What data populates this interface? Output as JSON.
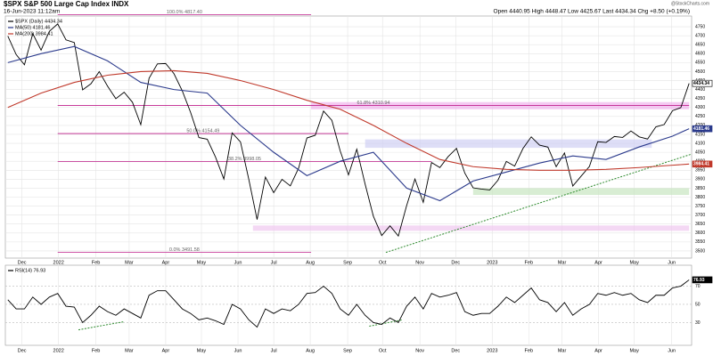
{
  "header": {
    "title": "$SPX S&P 500 Large Cap Index INDX",
    "timestamp": "16-Jun-2023 11:12am",
    "quote": "Open 4440.95 High 4448.47 Low 4425.67 Last 4434.34 Chg +8.50 (+0.19%)",
    "credit": "@StockCharts.com"
  },
  "chart_data": [
    {
      "type": "line",
      "xlim": [
        -0.3,
        82.3
      ],
      "xticks": [
        {
          "value": 1.7,
          "label": "Dec"
        },
        {
          "value": 6.1,
          "label": "2022"
        },
        {
          "value": 10.6,
          "label": "Feb"
        },
        {
          "value": 14.6,
          "label": "Mar"
        },
        {
          "value": 19,
          "label": "Apr"
        },
        {
          "value": 23.3,
          "label": "May"
        },
        {
          "value": 27.7,
          "label": "Jun"
        },
        {
          "value": 32,
          "label": "Jul"
        },
        {
          "value": 36.4,
          "label": "Aug"
        },
        {
          "value": 40.9,
          "label": "Sep"
        },
        {
          "value": 45.1,
          "label": "Oct"
        },
        {
          "value": 49.6,
          "label": "Nov"
        },
        {
          "value": 53.9,
          "label": "Dec"
        },
        {
          "value": 58.3,
          "label": "2023"
        },
        {
          "value": 62.7,
          "label": "Feb"
        },
        {
          "value": 66.7,
          "label": "Mar"
        },
        {
          "value": 71.1,
          "label": "Apr"
        },
        {
          "value": 75.4,
          "label": "May"
        },
        {
          "value": 79.9,
          "label": "Jun"
        }
      ],
      "ylim": [
        3460,
        4810
      ],
      "yticks": [
        3500,
        3550,
        3600,
        3650,
        3700,
        3750,
        3800,
        3850,
        3900,
        3950,
        4000,
        4050,
        4100,
        4150,
        4200,
        4250,
        4300,
        4350,
        4400,
        4450,
        4500,
        4550,
        4600,
        4650,
        4700,
        4750
      ],
      "grid": true,
      "series": [
        {
          "name": "$SPX (Daily) 4434.34",
          "color": "#000000",
          "values": [
            4698,
            4595,
            4538,
            4712,
            4620,
            4725,
            4766,
            4677,
            4662,
            4398,
            4432,
            4500,
            4419,
            4349,
            4385,
            4329,
            4204,
            4463,
            4543,
            4545,
            4488,
            4392,
            4272,
            4132,
            4123,
            4023,
            3901,
            4158,
            4108,
            3900,
            3675,
            3912,
            3825,
            3899,
            3863,
            3962,
            4130,
            4145,
            4280,
            4228,
            4058,
            3924,
            4067,
            3873,
            3693,
            3586,
            3640,
            3583,
            3753,
            3901,
            3771,
            3993,
            3965,
            4026,
            4072,
            3934,
            3852,
            3845,
            3840,
            3895,
            3999,
            3973,
            4071,
            4136,
            4090,
            4079,
            3970,
            4046,
            3862,
            3917,
            3971,
            4109,
            4105,
            4138,
            4133,
            4169,
            4136,
            4124,
            4192,
            4205,
            4282,
            4299,
            4434.34
          ]
        },
        {
          "name": "MA(50) 4181.46",
          "color": "#2b3a8c",
          "x": [
            0,
            4,
            8,
            12,
            16,
            20,
            24,
            28,
            32,
            36,
            40,
            44,
            48,
            52,
            56,
            60,
            64,
            68,
            72,
            76,
            80,
            82
          ],
          "values": [
            4550,
            4600,
            4640,
            4560,
            4440,
            4400,
            4380,
            4200,
            4050,
            3920,
            4000,
            4050,
            3850,
            3780,
            3890,
            3940,
            3990,
            4030,
            4010,
            4080,
            4140,
            4181.46
          ]
        },
        {
          "name": "MA(200) 3984.41",
          "color": "#c0392b",
          "x": [
            0,
            4,
            8,
            12,
            16,
            20,
            24,
            28,
            32,
            36,
            40,
            44,
            48,
            52,
            56,
            60,
            64,
            68,
            72,
            76,
            80,
            82
          ],
          "values": [
            4300,
            4380,
            4440,
            4480,
            4500,
            4505,
            4490,
            4450,
            4400,
            4340,
            4290,
            4200,
            4100,
            4010,
            3970,
            3955,
            3950,
            3950,
            3955,
            3965,
            3978,
            3984.41
          ]
        }
      ],
      "fib_levels": [
        {
          "label": "100.0% 4817.40",
          "value": 4817.4,
          "x": [
            6,
            36.5
          ]
        },
        {
          "label": "61.8% 4310.94",
          "value": 4310.94,
          "x": [
            6,
            82
          ]
        },
        {
          "label": "50.0% 4154.49",
          "value": 4154.49,
          "x": [
            6,
            41
          ]
        },
        {
          "label": "38.2% 3998.05",
          "value": 3998.05,
          "x": [
            6,
            51
          ]
        },
        {
          "label": "0.0% 3491.58",
          "value": 3491.58,
          "x": [
            6,
            36.5
          ]
        }
      ],
      "zones": [
        {
          "color": "#f0b4ec",
          "x": [
            36.5,
            82
          ],
          "y": [
            4290,
            4330
          ]
        },
        {
          "color": "#f0c8f0",
          "x": [
            29.5,
            82
          ],
          "y": [
            3612,
            3642
          ]
        },
        {
          "color": "#c8e6c0",
          "x": [
            56,
            82
          ],
          "y": [
            3812,
            3850
          ]
        },
        {
          "color": "#d0d0f4",
          "x": [
            43,
            77.5
          ],
          "y": [
            4075,
            4122
          ]
        }
      ],
      "trendline": {
        "color": "#2e8b2e",
        "x": [
          45.5,
          82.3
        ],
        "y": [
          3491.58,
          4040
        ]
      }
    },
    {
      "type": "line",
      "xlim": [
        -0.3,
        82.3
      ],
      "xticks": [
        {
          "value": 1.7,
          "label": "Dec"
        },
        {
          "value": 6.1,
          "label": "2022"
        },
        {
          "value": 10.6,
          "label": "Feb"
        },
        {
          "value": 14.6,
          "label": "Mar"
        },
        {
          "value": 19,
          "label": "Apr"
        },
        {
          "value": 23.3,
          "label": "May"
        },
        {
          "value": 27.7,
          "label": "Jun"
        },
        {
          "value": 32,
          "label": "Jul"
        },
        {
          "value": 36.4,
          "label": "Aug"
        },
        {
          "value": 40.9,
          "label": "Sep"
        },
        {
          "value": 45.1,
          "label": "Oct"
        },
        {
          "value": 49.6,
          "label": "Nov"
        },
        {
          "value": 53.9,
          "label": "Dec"
        },
        {
          "value": 58.3,
          "label": "2023"
        },
        {
          "value": 62.7,
          "label": "Feb"
        },
        {
          "value": 66.7,
          "label": "Mar"
        },
        {
          "value": 71.1,
          "label": "Apr"
        },
        {
          "value": 75.4,
          "label": "May"
        },
        {
          "value": 79.9,
          "label": "Jun"
        }
      ],
      "ylim": [
        5,
        93
      ],
      "yticks": [
        30,
        50,
        70
      ],
      "grid": true,
      "series": [
        {
          "name": "RSI(14) 76.93",
          "color": "#000000",
          "values": [
            55,
            45,
            45,
            58,
            50,
            58,
            62,
            48,
            47,
            30,
            38,
            48,
            42,
            38,
            45,
            40,
            35,
            60,
            65,
            65,
            55,
            45,
            40,
            33,
            35,
            32,
            28,
            50,
            45,
            33,
            25,
            45,
            40,
            45,
            43,
            50,
            62,
            63,
            70,
            62,
            45,
            38,
            50,
            38,
            30,
            28,
            35,
            30,
            48,
            58,
            45,
            62,
            58,
            60,
            63,
            42,
            38,
            40,
            40,
            48,
            58,
            52,
            60,
            68,
            55,
            52,
            42,
            52,
            38,
            45,
            50,
            62,
            60,
            63,
            60,
            62,
            55,
            52,
            60,
            60,
            68,
            70,
            76.93
          ]
        }
      ],
      "trendlines": [
        {
          "color": "#2e8b2e",
          "x": [
            8.5,
            14
          ],
          "y": [
            22,
            31
          ]
        },
        {
          "color": "#2e8b2e",
          "x": [
            43.5,
            47.5
          ],
          "y": [
            26,
            33
          ]
        }
      ]
    }
  ]
}
